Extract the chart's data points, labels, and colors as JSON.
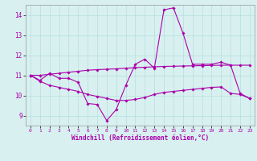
{
  "xlabel": "Windchill (Refroidissement éolien,°C)",
  "bg_color": "#d8f0f0",
  "line_color": "#aa00aa",
  "grid_color": "#b8dede",
  "xlim": [
    -0.5,
    23.5
  ],
  "ylim": [
    8.5,
    14.5
  ],
  "yticks": [
    9,
    10,
    11,
    12,
    13,
    14
  ],
  "xticks": [
    0,
    1,
    2,
    3,
    4,
    5,
    6,
    7,
    8,
    9,
    10,
    11,
    12,
    13,
    14,
    15,
    16,
    17,
    18,
    19,
    20,
    21,
    22,
    23
  ],
  "series": [
    [
      11.0,
      10.75,
      11.1,
      10.85,
      10.85,
      10.65,
      9.6,
      9.55,
      8.75,
      9.3,
      10.5,
      11.55,
      11.8,
      11.35,
      14.25,
      14.35,
      13.1,
      11.55,
      11.55,
      11.55,
      11.65,
      11.5,
      10.1,
      9.85
    ],
    [
      11.0,
      11.0,
      11.05,
      11.1,
      11.15,
      11.2,
      11.25,
      11.28,
      11.3,
      11.32,
      11.35,
      11.38,
      11.4,
      11.42,
      11.44,
      11.45,
      11.46,
      11.47,
      11.48,
      11.49,
      11.5,
      11.5,
      11.5,
      11.5
    ],
    [
      11.0,
      10.7,
      10.5,
      10.4,
      10.3,
      10.2,
      10.05,
      9.95,
      9.85,
      9.75,
      9.75,
      9.8,
      9.9,
      10.05,
      10.15,
      10.2,
      10.25,
      10.3,
      10.35,
      10.4,
      10.42,
      10.1,
      10.05,
      9.85
    ]
  ]
}
